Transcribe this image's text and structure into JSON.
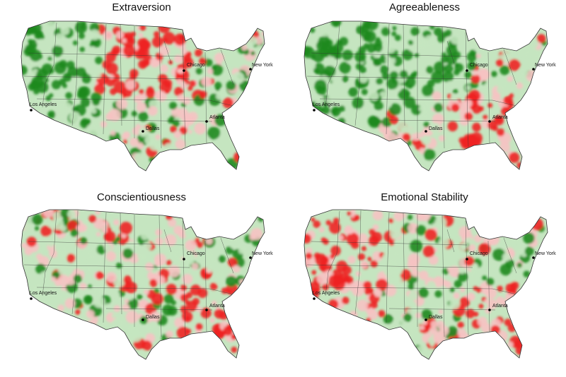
{
  "figure": {
    "panels": [
      {
        "title": "Extraversion",
        "west": "green",
        "southeast": "mixed",
        "midwest": "red"
      },
      {
        "title": "Agreeableness",
        "west": "green",
        "southeast": "red",
        "midwest": "green"
      },
      {
        "title": "Conscientiousness",
        "west": "mixed",
        "southeast": "red",
        "midwest": "mixed"
      },
      {
        "title": "Emotional Stability",
        "west": "red",
        "southeast": "red",
        "midwest": "mixed"
      }
    ],
    "cities": [
      "Chicago",
      "New York",
      "Los Angeles",
      "Dallas",
      "Atlanta"
    ]
  },
  "colors": {
    "strong_green": "#1f8a1f",
    "light_green": "#c5e5c0",
    "light_red": "#f6c3c3",
    "strong_red": "#ee2222",
    "border": "#333333"
  }
}
